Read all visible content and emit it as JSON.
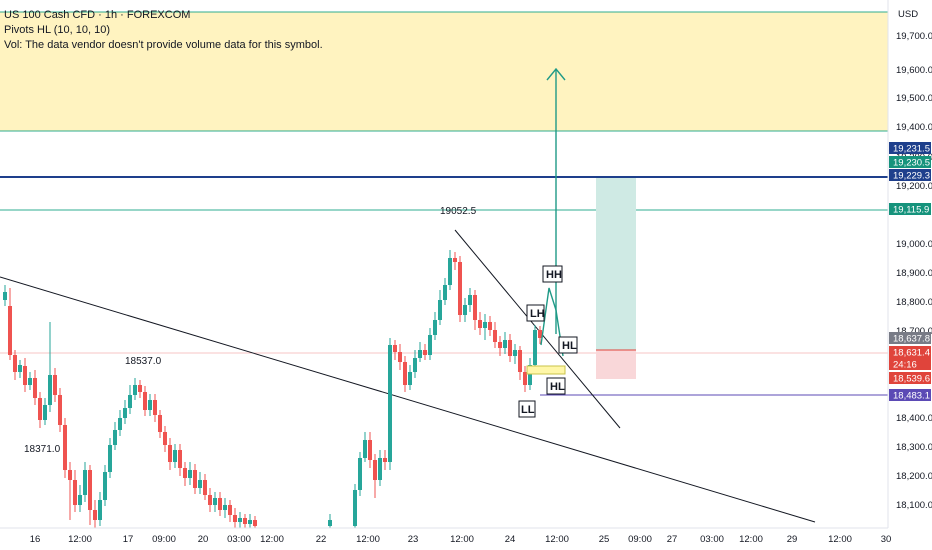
{
  "legend": {
    "symbol": "US 100 Cash CFD · 1h · FOREXCOM",
    "indicator": "Pivots HL (10, 10, 10)",
    "volume_note": "Vol: The data vendor doesn't provide volume data for this symbol."
  },
  "axis": {
    "currency": "USD",
    "y_ticks": [
      "19,700.0",
      "19,600.0",
      "19,500.0",
      "19,400.0",
      "19,300.0",
      "19,200.0",
      "19,000.0",
      "18,900.0",
      "18,800.0",
      "18,700.0",
      "18,400.0",
      "18,300.0",
      "18,200.0",
      "18,100.0"
    ],
    "x_ticks": [
      "16",
      "12:00",
      "17",
      "09:00",
      "20",
      "03:00",
      "12:00",
      "22",
      "12:00",
      "23",
      "12:00",
      "24",
      "12:00",
      "25",
      "09:00",
      "27",
      "03:00",
      "12:00",
      "29",
      "12:00",
      "30"
    ]
  },
  "price_tags": [
    {
      "value": "19,231.5",
      "color": "#1e3f8c"
    },
    {
      "value": "19,230.5",
      "color": "#16937c"
    },
    {
      "value": "19,229.3",
      "color": "#1e3f8c"
    },
    {
      "value": "19,115.9",
      "color": "#16937c"
    },
    {
      "value": "18,637.8",
      "color": "#787b86"
    },
    {
      "value": "18,631.4",
      "color": "#e0443b"
    },
    {
      "value": "24:16",
      "color": "#e0443b"
    },
    {
      "value": "18,539.6",
      "color": "#e0443b"
    },
    {
      "value": "18,483.1",
      "color": "#5b4ab5"
    }
  ],
  "annotations": {
    "high_label": "19052.5",
    "mid_label": "18537.0",
    "low_label": "18371.0",
    "pivots": [
      "HH",
      "LH",
      "HL",
      "HL",
      "LL"
    ]
  },
  "colors": {
    "up": "#26a69a",
    "down": "#ef5350",
    "zone_fill": "#fff3c0",
    "target_fill": "#cfeae4",
    "stop_fill": "#f9d7d9",
    "arrow": "#1f9a87"
  }
}
